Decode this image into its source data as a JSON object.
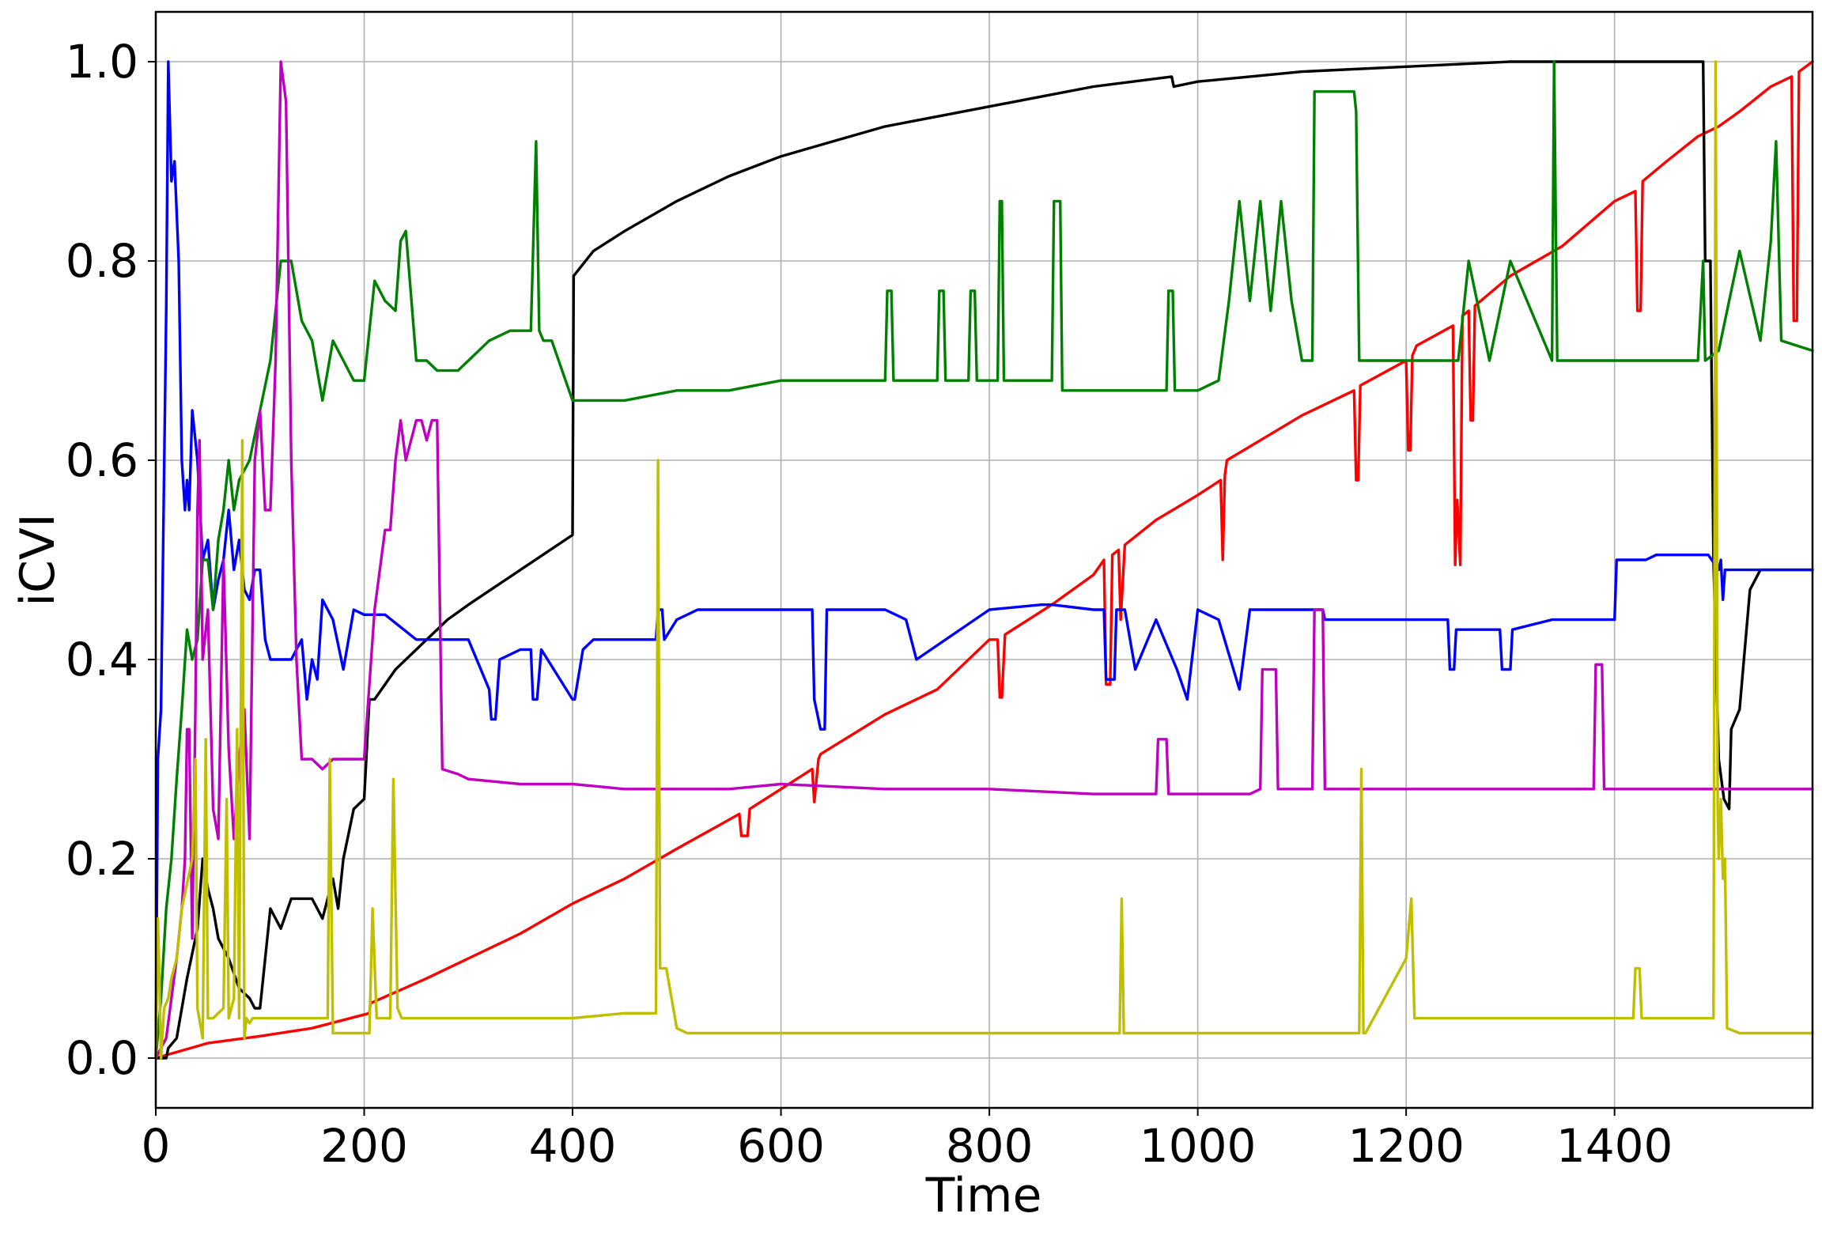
{
  "chart_data": {
    "type": "line",
    "title": "",
    "xlabel": "Time",
    "ylabel": "iCVI",
    "xlim": [
      0,
      1590
    ],
    "ylim": [
      -0.05,
      1.05
    ],
    "xticks": [
      0,
      200,
      400,
      600,
      800,
      1000,
      1200,
      1400
    ],
    "yticks": [
      0.0,
      0.2,
      0.4,
      0.6,
      0.8,
      1.0
    ],
    "xtick_labels": [
      "0",
      "200",
      "400",
      "600",
      "800",
      "1000",
      "1200",
      "1400"
    ],
    "ytick_labels": [
      "0.0",
      "0.2",
      "0.4",
      "0.6",
      "0.8",
      "1.0"
    ],
    "grid": true,
    "legend": "none",
    "series": [
      {
        "color": "#ff0000",
        "x": [
          0,
          50,
          100,
          150,
          205,
          206,
          260,
          300,
          350,
          400,
          450,
          500,
          560,
          562,
          568,
          570,
          600,
          630,
          632,
          636,
          638,
          700,
          750,
          800,
          808,
          810,
          812,
          815,
          860,
          900,
          910,
          912,
          916,
          918,
          924,
          926,
          930,
          960,
          1000,
          1022,
          1024,
          1026,
          1028,
          1060,
          1100,
          1150,
          1152,
          1154,
          1156,
          1200,
          1202,
          1204,
          1206,
          1210,
          1245,
          1247,
          1249,
          1252,
          1254,
          1260,
          1262,
          1264,
          1266,
          1300,
          1350,
          1400,
          1420,
          1422,
          1425,
          1427,
          1450,
          1480,
          1500,
          1520,
          1550,
          1570,
          1572,
          1575,
          1577,
          1590
        ],
        "y": [
          0.0,
          0.015,
          0.022,
          0.03,
          0.045,
          0.055,
          0.08,
          0.1,
          0.125,
          0.155,
          0.18,
          0.21,
          0.245,
          0.223,
          0.223,
          0.25,
          0.27,
          0.29,
          0.257,
          0.3,
          0.305,
          0.345,
          0.37,
          0.42,
          0.42,
          0.362,
          0.362,
          0.425,
          0.455,
          0.485,
          0.5,
          0.375,
          0.375,
          0.505,
          0.51,
          0.44,
          0.515,
          0.54,
          0.565,
          0.58,
          0.5,
          0.585,
          0.6,
          0.62,
          0.645,
          0.67,
          0.58,
          0.58,
          0.675,
          0.7,
          0.61,
          0.61,
          0.705,
          0.715,
          0.735,
          0.495,
          0.56,
          0.495,
          0.745,
          0.75,
          0.64,
          0.64,
          0.755,
          0.785,
          0.815,
          0.86,
          0.87,
          0.75,
          0.75,
          0.88,
          0.9,
          0.925,
          0.935,
          0.95,
          0.975,
          0.985,
          0.74,
          0.74,
          0.99,
          1.0
        ]
      },
      {
        "color": "#000000",
        "x": [
          0,
          10,
          12,
          20,
          30,
          40,
          45,
          50,
          55,
          60,
          70,
          80,
          90,
          95,
          100,
          110,
          120,
          130,
          150,
          160,
          170,
          175,
          180,
          190,
          200,
          205,
          210,
          230,
          250,
          280,
          300,
          350,
          400,
          401,
          420,
          450,
          500,
          550,
          600,
          650,
          700,
          750,
          800,
          850,
          900,
          975,
          977,
          1000,
          1050,
          1100,
          1200,
          1300,
          1400,
          1480,
          1485,
          1487,
          1492,
          1495,
          1500,
          1505,
          1510,
          1512,
          1520,
          1530,
          1540,
          1560,
          1590
        ],
        "y": [
          0.0,
          0.0,
          0.01,
          0.02,
          0.08,
          0.13,
          0.2,
          0.17,
          0.15,
          0.12,
          0.1,
          0.07,
          0.06,
          0.05,
          0.05,
          0.15,
          0.13,
          0.16,
          0.16,
          0.14,
          0.18,
          0.15,
          0.2,
          0.25,
          0.26,
          0.36,
          0.36,
          0.39,
          0.41,
          0.44,
          0.455,
          0.49,
          0.525,
          0.785,
          0.81,
          0.83,
          0.86,
          0.885,
          0.905,
          0.92,
          0.935,
          0.945,
          0.955,
          0.965,
          0.975,
          0.985,
          0.975,
          0.98,
          0.985,
          0.99,
          0.995,
          1.0,
          1.0,
          1.0,
          1.0,
          0.8,
          0.8,
          0.5,
          0.3,
          0.26,
          0.25,
          0.33,
          0.35,
          0.47,
          0.49,
          0.49,
          0.49
        ]
      },
      {
        "color": "#0000ff",
        "x": [
          0,
          2,
          5,
          10,
          12,
          15,
          18,
          22,
          25,
          28,
          30,
          32,
          35,
          40,
          45,
          50,
          55,
          60,
          65,
          70,
          75,
          80,
          85,
          90,
          95,
          100,
          105,
          110,
          115,
          120,
          130,
          140,
          145,
          150,
          155,
          160,
          170,
          180,
          190,
          200,
          220,
          250,
          300,
          320,
          322,
          326,
          330,
          350,
          360,
          362,
          366,
          370,
          400,
          402,
          410,
          420,
          480,
          482,
          486,
          488,
          500,
          520,
          550,
          600,
          630,
          632,
          638,
          642,
          644,
          660,
          700,
          720,
          730,
          800,
          850,
          860,
          900,
          910,
          912,
          920,
          922,
          930,
          940,
          960,
          980,
          990,
          1000,
          1020,
          1040,
          1050,
          1070,
          1110,
          1120,
          1122,
          1150,
          1200,
          1240,
          1242,
          1246,
          1248,
          1290,
          1292,
          1300,
          1302,
          1340,
          1380,
          1400,
          1402,
          1430,
          1440,
          1490,
          1500,
          1502,
          1504,
          1506,
          1590
        ],
        "y": [
          0.0,
          0.3,
          0.35,
          0.75,
          1.0,
          0.88,
          0.9,
          0.8,
          0.6,
          0.55,
          0.58,
          0.55,
          0.65,
          0.6,
          0.5,
          0.52,
          0.45,
          0.48,
          0.5,
          0.55,
          0.49,
          0.52,
          0.47,
          0.46,
          0.49,
          0.49,
          0.42,
          0.4,
          0.4,
          0.4,
          0.4,
          0.42,
          0.36,
          0.4,
          0.38,
          0.46,
          0.44,
          0.39,
          0.45,
          0.445,
          0.445,
          0.42,
          0.42,
          0.37,
          0.34,
          0.34,
          0.4,
          0.41,
          0.41,
          0.36,
          0.36,
          0.41,
          0.36,
          0.36,
          0.41,
          0.42,
          0.42,
          0.45,
          0.45,
          0.42,
          0.44,
          0.45,
          0.45,
          0.45,
          0.45,
          0.36,
          0.33,
          0.33,
          0.45,
          0.45,
          0.45,
          0.44,
          0.4,
          0.45,
          0.455,
          0.455,
          0.45,
          0.45,
          0.38,
          0.38,
          0.45,
          0.45,
          0.39,
          0.44,
          0.39,
          0.36,
          0.45,
          0.44,
          0.37,
          0.45,
          0.45,
          0.45,
          0.45,
          0.44,
          0.44,
          0.44,
          0.44,
          0.39,
          0.39,
          0.43,
          0.43,
          0.39,
          0.39,
          0.43,
          0.44,
          0.44,
          0.44,
          0.5,
          0.5,
          0.505,
          0.505,
          0.49,
          0.5,
          0.46,
          0.49,
          0.49
        ]
      },
      {
        "color": "#008000",
        "x": [
          0,
          5,
          10,
          15,
          20,
          25,
          30,
          35,
          40,
          45,
          50,
          55,
          60,
          65,
          70,
          75,
          80,
          90,
          100,
          110,
          120,
          130,
          140,
          150,
          160,
          170,
          180,
          190,
          200,
          210,
          220,
          230,
          235,
          240,
          250,
          260,
          270,
          280,
          290,
          300,
          320,
          340,
          360,
          365,
          368,
          372,
          380,
          400,
          450,
          500,
          550,
          600,
          650,
          700,
          702,
          706,
          708,
          750,
          752,
          756,
          758,
          780,
          782,
          786,
          788,
          808,
          810,
          812,
          814,
          860,
          862,
          868,
          870,
          970,
          972,
          976,
          978,
          1000,
          1020,
          1030,
          1040,
          1050,
          1060,
          1070,
          1080,
          1090,
          1100,
          1110,
          1112,
          1150,
          1152,
          1155,
          1158,
          1200,
          1250,
          1260,
          1280,
          1300,
          1340,
          1342,
          1345,
          1400,
          1480,
          1485,
          1487,
          1500,
          1520,
          1540,
          1550,
          1555,
          1560,
          1590
        ],
        "y": [
          0.0,
          0.06,
          0.15,
          0.2,
          0.28,
          0.35,
          0.43,
          0.4,
          0.42,
          0.5,
          0.5,
          0.45,
          0.52,
          0.55,
          0.6,
          0.55,
          0.58,
          0.6,
          0.65,
          0.7,
          0.8,
          0.8,
          0.74,
          0.72,
          0.66,
          0.72,
          0.7,
          0.68,
          0.68,
          0.78,
          0.76,
          0.75,
          0.82,
          0.83,
          0.7,
          0.7,
          0.69,
          0.69,
          0.69,
          0.7,
          0.72,
          0.73,
          0.73,
          0.92,
          0.73,
          0.72,
          0.72,
          0.66,
          0.66,
          0.67,
          0.67,
          0.68,
          0.68,
          0.68,
          0.77,
          0.77,
          0.68,
          0.68,
          0.77,
          0.77,
          0.68,
          0.68,
          0.77,
          0.77,
          0.68,
          0.68,
          0.86,
          0.86,
          0.68,
          0.68,
          0.86,
          0.86,
          0.67,
          0.67,
          0.77,
          0.77,
          0.67,
          0.67,
          0.68,
          0.76,
          0.86,
          0.76,
          0.86,
          0.75,
          0.86,
          0.76,
          0.7,
          0.7,
          0.97,
          0.97,
          0.95,
          0.7,
          0.7,
          0.7,
          0.7,
          0.8,
          0.7,
          0.8,
          0.7,
          1.0,
          0.7,
          0.7,
          0.7,
          0.8,
          0.7,
          0.71,
          0.81,
          0.72,
          0.82,
          0.92,
          0.72,
          0.71
        ]
      },
      {
        "color": "#c000c0",
        "x": [
          0,
          10,
          15,
          20,
          25,
          28,
          30,
          32,
          35,
          38,
          40,
          42,
          45,
          50,
          55,
          60,
          65,
          70,
          75,
          80,
          85,
          90,
          95,
          100,
          105,
          110,
          115,
          120,
          125,
          130,
          135,
          140,
          150,
          160,
          170,
          180,
          200,
          210,
          220,
          225,
          230,
          235,
          240,
          250,
          255,
          260,
          265,
          270,
          275,
          290,
          300,
          350,
          400,
          450,
          500,
          550,
          600,
          700,
          800,
          900,
          960,
          962,
          970,
          972,
          1000,
          1050,
          1060,
          1062,
          1075,
          1077,
          1110,
          1112,
          1120,
          1122,
          1200,
          1300,
          1380,
          1382,
          1388,
          1390,
          1500,
          1590
        ],
        "y": [
          0.0,
          0.02,
          0.06,
          0.1,
          0.15,
          0.2,
          0.33,
          0.33,
          0.12,
          0.35,
          0.55,
          0.62,
          0.4,
          0.45,
          0.25,
          0.22,
          0.5,
          0.31,
          0.22,
          0.3,
          0.35,
          0.22,
          0.6,
          0.65,
          0.55,
          0.55,
          0.7,
          1.0,
          0.96,
          0.6,
          0.4,
          0.3,
          0.3,
          0.29,
          0.3,
          0.3,
          0.3,
          0.45,
          0.53,
          0.53,
          0.6,
          0.64,
          0.6,
          0.64,
          0.64,
          0.62,
          0.64,
          0.64,
          0.29,
          0.285,
          0.28,
          0.275,
          0.275,
          0.27,
          0.27,
          0.27,
          0.275,
          0.27,
          0.27,
          0.265,
          0.265,
          0.32,
          0.32,
          0.265,
          0.265,
          0.265,
          0.27,
          0.39,
          0.39,
          0.27,
          0.27,
          0.45,
          0.45,
          0.27,
          0.27,
          0.27,
          0.27,
          0.395,
          0.395,
          0.27,
          0.27,
          0.27
        ]
      },
      {
        "color": "#bfbf00",
        "x": [
          0,
          2,
          3,
          5,
          8,
          12,
          15,
          20,
          25,
          35,
          38,
          40,
          45,
          48,
          50,
          55,
          65,
          68,
          70,
          75,
          78,
          80,
          83,
          85,
          87,
          90,
          93,
          95,
          100,
          150,
          165,
          167,
          170,
          200,
          205,
          208,
          212,
          215,
          225,
          228,
          232,
          236,
          250,
          300,
          350,
          400,
          450,
          480,
          482,
          484,
          486,
          490,
          500,
          510,
          600,
          700,
          800,
          900,
          925,
          927,
          929,
          931,
          1000,
          1100,
          1150,
          1155,
          1157,
          1159,
          1161,
          1200,
          1205,
          1208,
          1210,
          1300,
          1400,
          1418,
          1420,
          1424,
          1426,
          1480,
          1495,
          1497,
          1499,
          1500,
          1502,
          1504,
          1506,
          1508,
          1520,
          1590
        ],
        "y": [
          0.0,
          0.14,
          0.1,
          0.0,
          0.05,
          0.06,
          0.08,
          0.1,
          0.15,
          0.2,
          0.3,
          0.05,
          0.02,
          0.32,
          0.04,
          0.04,
          0.05,
          0.26,
          0.04,
          0.06,
          0.33,
          0.04,
          0.62,
          0.02,
          0.04,
          0.035,
          0.04,
          0.04,
          0.04,
          0.04,
          0.04,
          0.3,
          0.025,
          0.025,
          0.025,
          0.15,
          0.04,
          0.04,
          0.04,
          0.28,
          0.05,
          0.04,
          0.04,
          0.04,
          0.04,
          0.04,
          0.045,
          0.045,
          0.6,
          0.09,
          0.09,
          0.09,
          0.03,
          0.025,
          0.025,
          0.025,
          0.025,
          0.025,
          0.025,
          0.16,
          0.025,
          0.025,
          0.025,
          0.025,
          0.025,
          0.025,
          0.29,
          0.025,
          0.025,
          0.1,
          0.16,
          0.04,
          0.04,
          0.04,
          0.04,
          0.04,
          0.09,
          0.09,
          0.04,
          0.04,
          0.04,
          1.0,
          0.25,
          0.2,
          0.26,
          0.18,
          0.2,
          0.03,
          0.025,
          0.025
        ]
      }
    ]
  }
}
